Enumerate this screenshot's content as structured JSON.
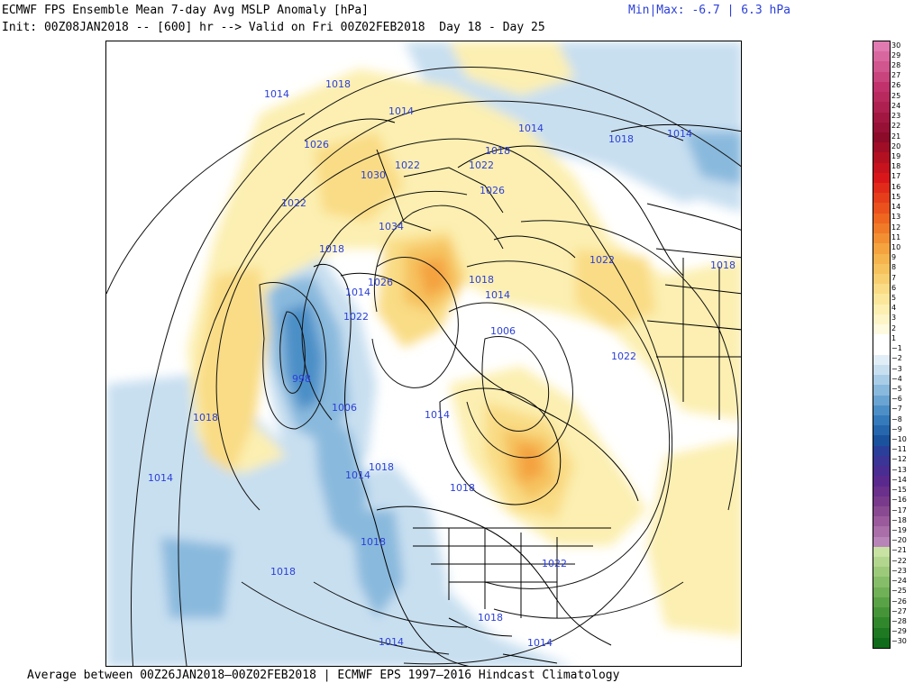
{
  "header": {
    "title": "ECMWF FPS Ensemble Mean 7-day Avg MSLP Anomaly [hPa]",
    "init_line": "Init: 00Z08JAN2018 -- [600] hr --> Valid on Fri 00Z02FEB2018  Day 18 - Day 25",
    "minmax": "Min|Max: -6.7 | 6.3 hPa"
  },
  "footer": "Average between 00Z26JAN2018–00Z02FEB2018 | ECMWF EPS 1997–2016 Hindcast Climatology",
  "colorbar": {
    "labels": [
      "30",
      "29",
      "28",
      "27",
      "26",
      "25",
      "24",
      "23",
      "22",
      "21",
      "20",
      "19",
      "18",
      "17",
      "16",
      "15",
      "14",
      "13",
      "12",
      "11",
      "10",
      "9",
      "8",
      "7",
      "6",
      "5",
      "4",
      "3",
      "2",
      "1",
      "−1",
      "−2",
      "−3",
      "−4",
      "−5",
      "−6",
      "−7",
      "−8",
      "−9",
      "−10",
      "−11",
      "−12",
      "−13",
      "−14",
      "−15",
      "−16",
      "−17",
      "−18",
      "−19",
      "−20",
      "−21",
      "−22",
      "−23",
      "−24",
      "−25",
      "−26",
      "−27",
      "−28",
      "−29",
      "−30"
    ],
    "colors": [
      "#e07ab0",
      "#d9679f",
      "#d1558e",
      "#c9437d",
      "#c1316c",
      "#b82a5e",
      "#ad2050",
      "#a21742",
      "#971035",
      "#8c0a2a",
      "#a00d26",
      "#b31022",
      "#c6131e",
      "#d9171a",
      "#e12a1a",
      "#e63d1b",
      "#ea511d",
      "#ee661f",
      "#f07a28",
      "#f28f33",
      "#f4a33f",
      "#f5b44d",
      "#f6c25e",
      "#f8cf70",
      "#f9dc85",
      "#fbe79b",
      "#fcefb1",
      "#fdf5c8",
      "#fefae0",
      "#ffffff",
      "#ffffff",
      "#e2eef7",
      "#c8dff0",
      "#a9cde7",
      "#89b9dd",
      "#6aa4d2",
      "#4c8fc7",
      "#357abb",
      "#2666ad",
      "#1a529e",
      "#2a3f9a",
      "#3a3596",
      "#4a2d92",
      "#5a298e",
      "#6a308c",
      "#7a3a8c",
      "#8a4a92",
      "#9a5a9c",
      "#aa6ea8",
      "#b885b8",
      "#c7e2a2",
      "#b2d68e",
      "#9cca7a",
      "#86bd68",
      "#70b056",
      "#5aa246",
      "#459538",
      "#31872c",
      "#1f7922",
      "#106b1a"
    ]
  },
  "isobar_labels": [
    {
      "text": "1014"
    },
    {
      "text": "1018"
    },
    {
      "text": "1014"
    },
    {
      "text": "1014"
    },
    {
      "text": "1018"
    },
    {
      "text": "1014"
    },
    {
      "text": "1026"
    },
    {
      "text": "1022"
    },
    {
      "text": "1018"
    },
    {
      "text": "1022"
    },
    {
      "text": "1030"
    },
    {
      "text": "1026"
    },
    {
      "text": "1022"
    },
    {
      "text": "1034"
    },
    {
      "text": "1018"
    },
    {
      "text": "1026"
    },
    {
      "text": "1014"
    },
    {
      "text": "1018"
    },
    {
      "text": "1014"
    },
    {
      "text": "1022"
    },
    {
      "text": "1022"
    },
    {
      "text": "1018"
    },
    {
      "text": "1006"
    },
    {
      "text": "998"
    },
    {
      "text": "1022"
    },
    {
      "text": "1006"
    },
    {
      "text": "1014"
    },
    {
      "text": "1018"
    },
    {
      "text": "1018"
    },
    {
      "text": "1014"
    },
    {
      "text": "1018"
    },
    {
      "text": "1014"
    },
    {
      "text": "1018"
    },
    {
      "text": "1018"
    },
    {
      "text": "1022"
    },
    {
      "text": "1018"
    },
    {
      "text": "1014"
    },
    {
      "text": "1014"
    }
  ],
  "legend_semantics": {
    "positive_anomaly_color": "#f6c25e",
    "strong_positive_color": "#f28f33",
    "negative_anomaly_color": "#89b9dd",
    "strong_negative_color": "#357abb"
  }
}
